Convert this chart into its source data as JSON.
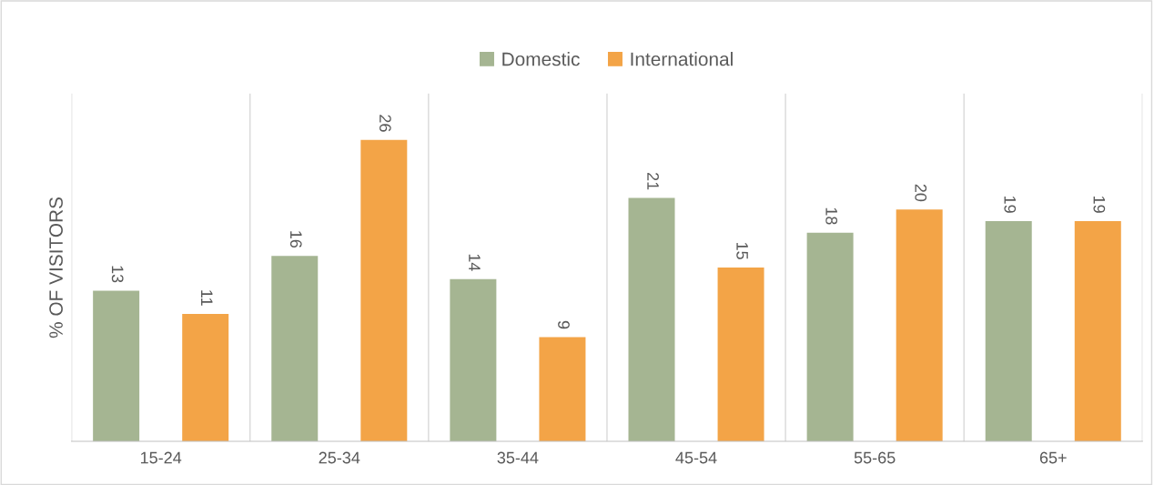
{
  "chart_data": {
    "type": "bar",
    "ylabel": "% OF VISITORS",
    "categories": [
      "15-24",
      "25-34",
      "35-44",
      "45-54",
      "55-65",
      "65+"
    ],
    "series": [
      {
        "name": "Domestic",
        "color": "#a5b592",
        "values": [
          13,
          16,
          14,
          21,
          18,
          19
        ]
      },
      {
        "name": "International",
        "color": "#f3a447",
        "values": [
          11,
          26,
          9,
          15,
          20,
          19
        ]
      }
    ],
    "ylim": [
      0,
      30
    ],
    "data_labels": true,
    "grid": "x",
    "legend": "top",
    "tick_labels": "x"
  }
}
